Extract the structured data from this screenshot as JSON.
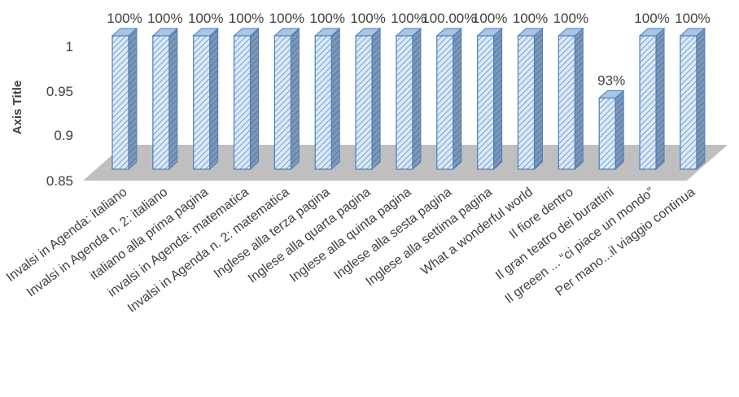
{
  "chart_data": {
    "type": "bar",
    "title": "",
    "xlabel": "",
    "ylabel": "Axis Title",
    "ylim": [
      0.85,
      1.0
    ],
    "yticks": [
      "0.85",
      "0.9",
      "0.95",
      "1"
    ],
    "grid": false,
    "legend": "none",
    "categories": [
      "Invalsi in Agenda: italiano",
      "Invalsi in Agenda n. 2: italiano",
      "italiano alla prima pagina",
      "invalsi in Agenda: matematica",
      "Invalsi in Agenda n. 2: matematica",
      "Inglese alla terza pagina",
      "Inglese alla quarta pagina",
      "Inglese alla quinta pagina",
      "Inglese alla sesta pagina",
      "Inglese alla settima pagina",
      "What a wonderful world",
      "Il fiore dentro",
      "Il gran teatro dei burattini",
      "Il greeen ... “ci piace un mondo”",
      "Per mano...il viaggio continua"
    ],
    "values": [
      1,
      1,
      1,
      1,
      1,
      1,
      1,
      1,
      1,
      1,
      1,
      1,
      0.93,
      1,
      1
    ],
    "data_labels": [
      "100%",
      "100%",
      "100%",
      "100%",
      "100%",
      "100%",
      "100%",
      "100%",
      "100.00%",
      "100%",
      "100%",
      "100%",
      "93%",
      "100%",
      "100%"
    ],
    "colors": {
      "bar_front": "#dce9f7",
      "bar_hatch": "#5b8fc7",
      "bar_side": "#6f8db2",
      "bar_top": "#a9c4e4",
      "bar_edge": "#4a7fbf",
      "floor": "#bfbfbf",
      "text": "#404040"
    }
  }
}
